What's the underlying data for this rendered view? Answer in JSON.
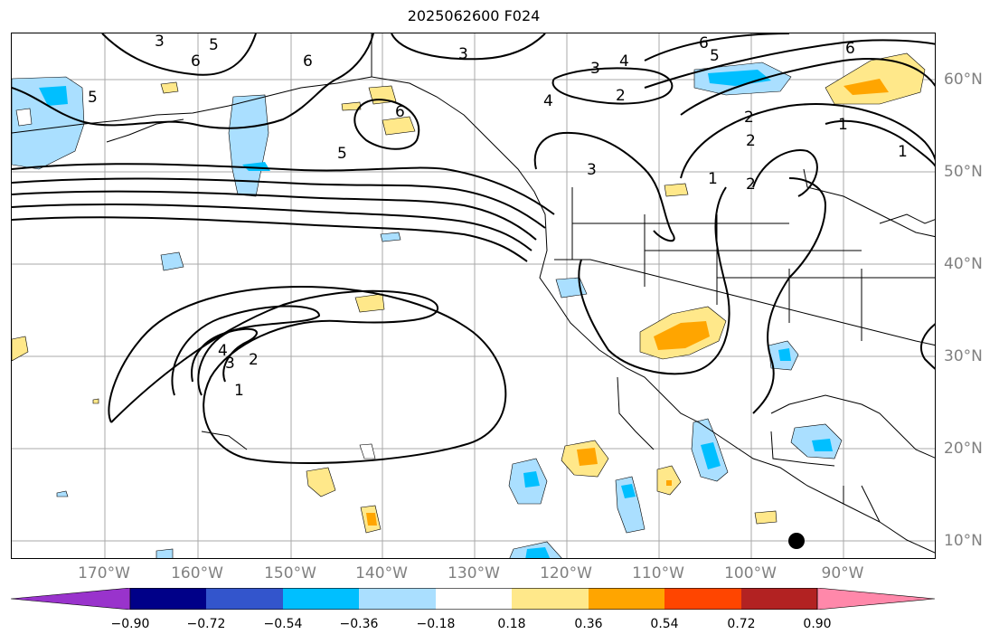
{
  "title": "2025062600 F024",
  "lon_labels": [
    "170°W",
    "160°W",
    "150°W",
    "140°W",
    "130°W",
    "120°W",
    "110°W",
    "100°W",
    "90°W"
  ],
  "lat_labels": [
    "60°N",
    "50°N",
    "40°N",
    "30°N",
    "20°N",
    "10°N"
  ],
  "colorbar": {
    "ticks": [
      "−0.90",
      "−0.72",
      "−0.54",
      "−0.36",
      "−0.18",
      "0.18",
      "0.36",
      "0.54",
      "0.72",
      "0.90"
    ],
    "colors": [
      "#9933cc",
      "#000088",
      "#3355cc",
      "#00bfff",
      "#aadfff",
      "#ffffff",
      "#ffe88a",
      "#ffa500",
      "#ff4500",
      "#b22222",
      "#ff88aa"
    ]
  },
  "contour_labels": [
    "1",
    "2",
    "3",
    "4",
    "5",
    "6"
  ],
  "marker": "filled-circle"
}
